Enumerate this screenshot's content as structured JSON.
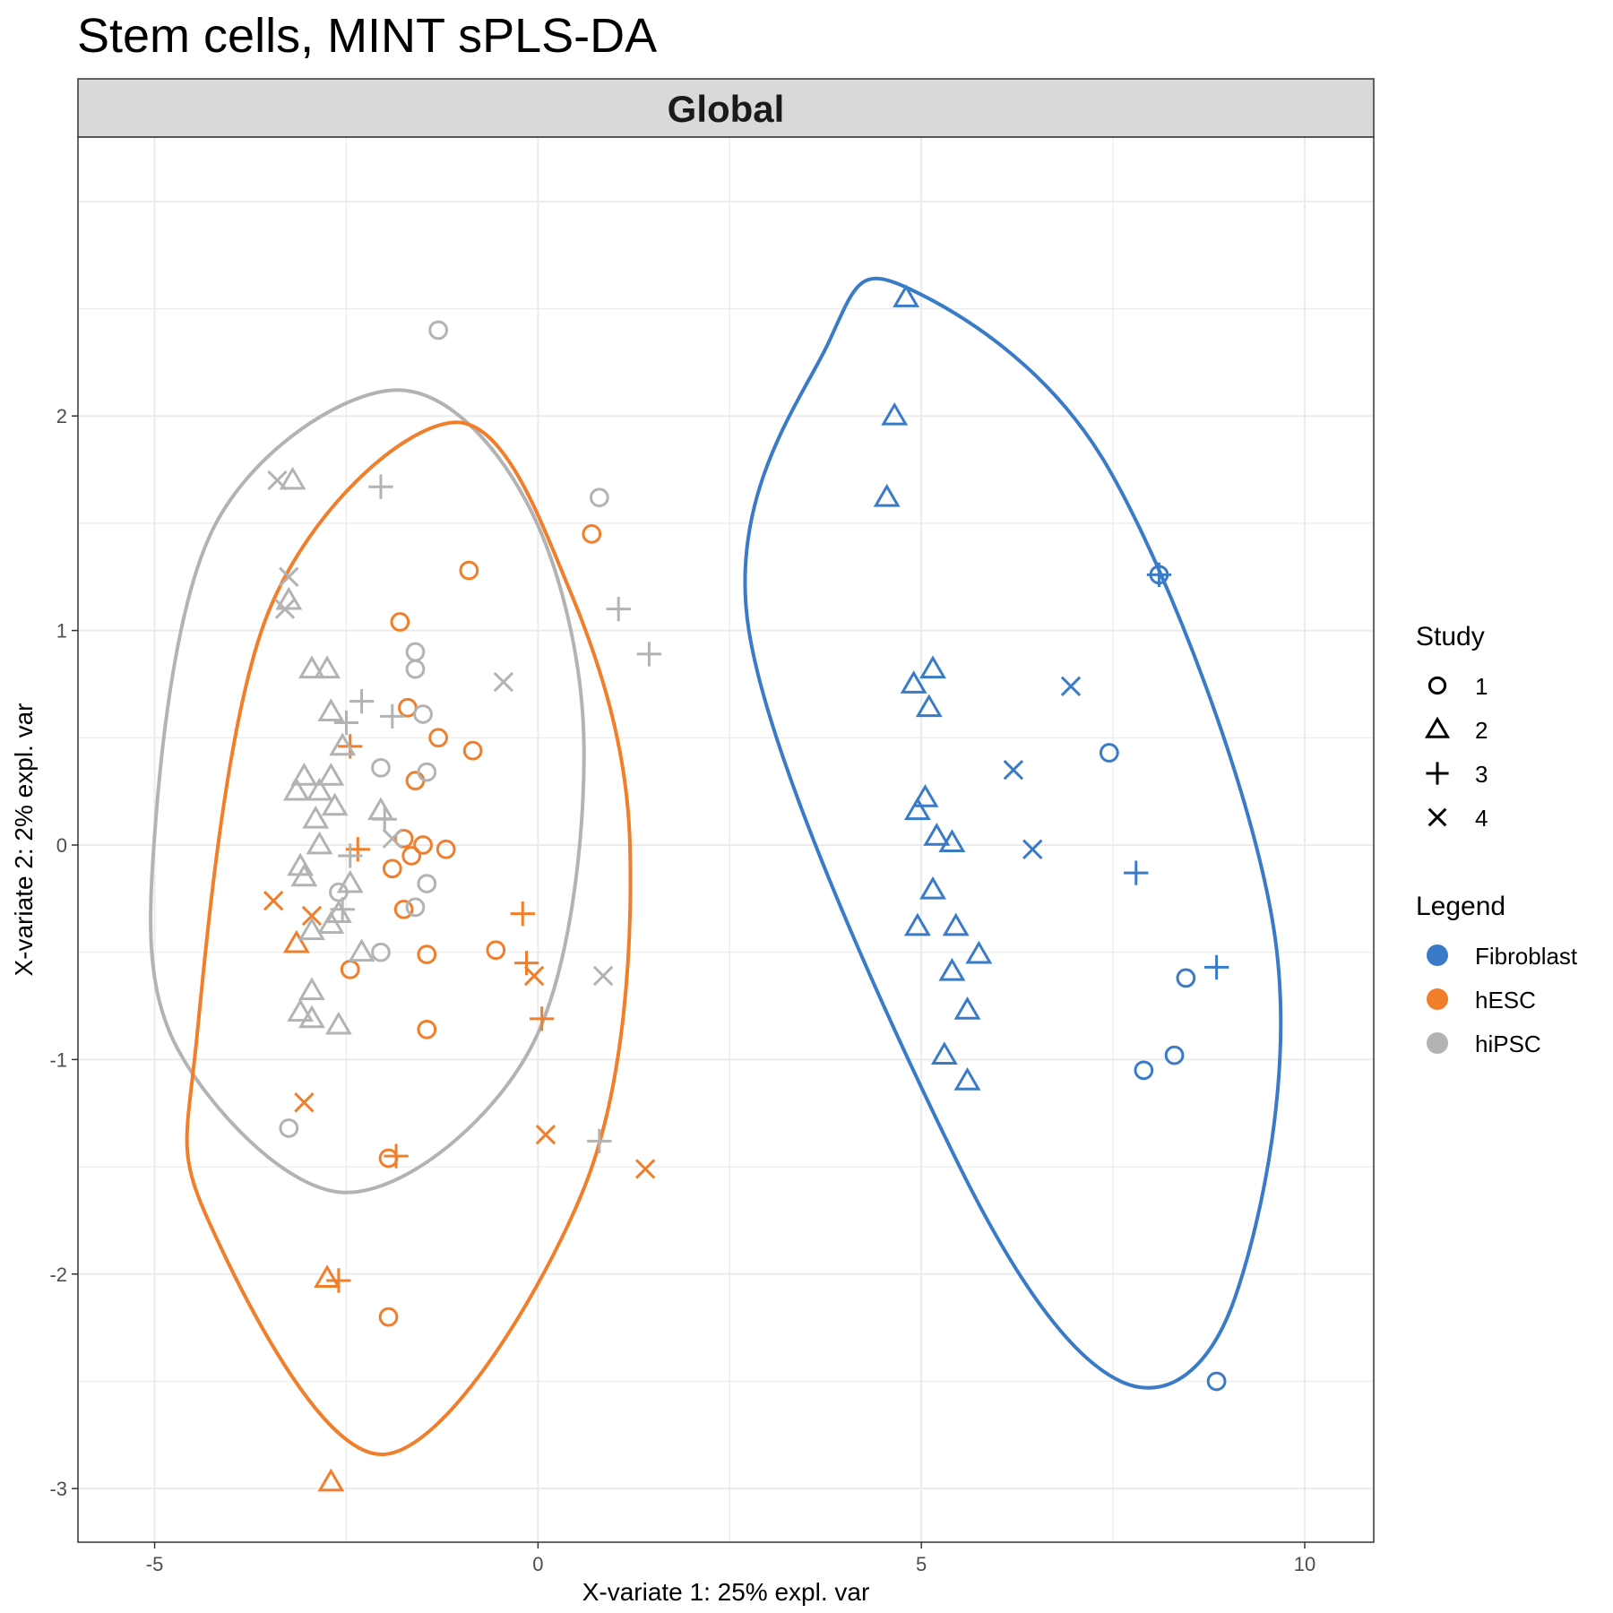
{
  "chart_data": {
    "type": "scatter",
    "title": "Stem cells, MINT sPLS-DA",
    "facet_label": "Global",
    "xlabel": "X-variate 1: 25% expl. var",
    "ylabel": "X-variate 2: 2% expl. var",
    "xlim": [
      -6.0,
      10.9
    ],
    "ylim": [
      -3.25,
      3.3
    ],
    "x_ticks": [
      -5,
      0,
      5,
      10
    ],
    "y_ticks": [
      -3,
      -2,
      -1,
      0,
      1,
      2
    ],
    "x_tick_labels": [
      "-5",
      "0",
      "5",
      "10"
    ],
    "y_tick_labels": [
      "-3",
      "-2",
      "-1",
      "0",
      "1",
      "2"
    ],
    "grid": true,
    "legend_position": "right",
    "colors": {
      "Fibroblast": "#3a7bc8",
      "hESC": "#f07e2b",
      "hiPSC": "#b3b3b3"
    },
    "shape_legend": {
      "title": "Study",
      "items": [
        {
          "label": "1",
          "shape": "circle"
        },
        {
          "label": "2",
          "shape": "triangle"
        },
        {
          "label": "3",
          "shape": "plus"
        },
        {
          "label": "4",
          "shape": "cross"
        }
      ]
    },
    "color_legend": {
      "title": "Legend",
      "items": [
        {
          "label": "Fibroblast",
          "color": "#3a7bc8"
        },
        {
          "label": "hESC",
          "color": "#f07e2b"
        },
        {
          "label": "hiPSC",
          "color": "#b3b3b3"
        }
      ]
    },
    "ellipses": [
      {
        "group": "hiPSC",
        "points": [
          [
            -1.9,
            2.12
          ],
          [
            -0.15,
            1.6
          ],
          [
            0.6,
            0.45
          ],
          [
            -0.1,
            -0.95
          ],
          [
            -2.5,
            -1.62
          ],
          [
            -4.7,
            -0.95
          ],
          [
            -5.0,
            0.05
          ],
          [
            -4.2,
            1.5
          ]
        ]
      },
      {
        "group": "hESC",
        "points": [
          [
            -1.1,
            1.97
          ],
          [
            0.4,
            1.2
          ],
          [
            1.2,
            0.0
          ],
          [
            0.6,
            -1.6
          ],
          [
            -2.0,
            -2.84
          ],
          [
            -4.3,
            -1.75
          ],
          [
            -4.45,
            -0.9
          ],
          [
            -3.5,
            1.1
          ]
        ]
      },
      {
        "group": "Fibroblast",
        "points": [
          [
            4.8,
            2.6
          ],
          [
            7.45,
            1.75
          ],
          [
            9.6,
            -0.4
          ],
          [
            9.1,
            -2.1
          ],
          [
            7.6,
            -2.5
          ],
          [
            5.5,
            -1.5
          ],
          [
            2.75,
            1.0
          ],
          [
            3.8,
            2.35
          ]
        ]
      }
    ],
    "series": [
      {
        "name": "Fibroblast",
        "points": [
          {
            "x": 4.8,
            "y": 2.55,
            "study": "2"
          },
          {
            "x": 4.65,
            "y": 2.0,
            "study": "2"
          },
          {
            "x": 4.55,
            "y": 1.62,
            "study": "2"
          },
          {
            "x": 5.15,
            "y": 0.82,
            "study": "2"
          },
          {
            "x": 4.9,
            "y": 0.75,
            "study": "2"
          },
          {
            "x": 5.1,
            "y": 0.64,
            "study": "2"
          },
          {
            "x": 5.05,
            "y": 0.22,
            "study": "2"
          },
          {
            "x": 4.95,
            "y": 0.16,
            "study": "2"
          },
          {
            "x": 5.2,
            "y": 0.04,
            "study": "2"
          },
          {
            "x": 5.4,
            "y": 0.01,
            "study": "2"
          },
          {
            "x": 5.15,
            "y": -0.21,
            "study": "2"
          },
          {
            "x": 4.95,
            "y": -0.38,
            "study": "2"
          },
          {
            "x": 5.45,
            "y": -0.38,
            "study": "2"
          },
          {
            "x": 5.75,
            "y": -0.51,
            "study": "2"
          },
          {
            "x": 5.4,
            "y": -0.59,
            "study": "2"
          },
          {
            "x": 5.6,
            "y": -0.77,
            "study": "2"
          },
          {
            "x": 5.3,
            "y": -0.98,
            "study": "2"
          },
          {
            "x": 5.6,
            "y": -1.1,
            "study": "2"
          },
          {
            "x": 8.1,
            "y": 1.26,
            "study": "1"
          },
          {
            "x": 7.45,
            "y": 0.43,
            "study": "1"
          },
          {
            "x": 8.45,
            "y": -0.62,
            "study": "1"
          },
          {
            "x": 8.3,
            "y": -0.98,
            "study": "1"
          },
          {
            "x": 7.9,
            "y": -1.05,
            "study": "1"
          },
          {
            "x": 8.85,
            "y": -2.5,
            "study": "1"
          },
          {
            "x": 8.1,
            "y": 1.26,
            "study": "3"
          },
          {
            "x": 7.8,
            "y": -0.13,
            "study": "3"
          },
          {
            "x": 8.85,
            "y": -0.57,
            "study": "3"
          },
          {
            "x": 6.95,
            "y": 0.74,
            "study": "4"
          },
          {
            "x": 6.2,
            "y": 0.35,
            "study": "4"
          },
          {
            "x": 6.45,
            "y": -0.02,
            "study": "4"
          }
        ]
      },
      {
        "name": "hESC",
        "points": [
          {
            "x": 0.7,
            "y": 1.45,
            "study": "1"
          },
          {
            "x": -0.9,
            "y": 1.28,
            "study": "1"
          },
          {
            "x": -1.8,
            "y": 1.04,
            "study": "1"
          },
          {
            "x": -1.7,
            "y": 0.64,
            "study": "1"
          },
          {
            "x": -1.3,
            "y": 0.5,
            "study": "1"
          },
          {
            "x": -0.85,
            "y": 0.44,
            "study": "1"
          },
          {
            "x": -1.6,
            "y": 0.3,
            "study": "1"
          },
          {
            "x": -1.75,
            "y": 0.03,
            "study": "1"
          },
          {
            "x": -1.5,
            "y": 0.0,
            "study": "1"
          },
          {
            "x": -1.2,
            "y": -0.02,
            "study": "1"
          },
          {
            "x": -1.65,
            "y": -0.05,
            "study": "1"
          },
          {
            "x": -1.9,
            "y": -0.11,
            "study": "1"
          },
          {
            "x": -1.75,
            "y": -0.3,
            "study": "1"
          },
          {
            "x": -0.55,
            "y": -0.49,
            "study": "1"
          },
          {
            "x": -1.45,
            "y": -0.51,
            "study": "1"
          },
          {
            "x": -2.45,
            "y": -0.58,
            "study": "1"
          },
          {
            "x": -1.45,
            "y": -0.86,
            "study": "1"
          },
          {
            "x": -1.95,
            "y": -1.46,
            "study": "1"
          },
          {
            "x": -1.95,
            "y": -2.2,
            "study": "1"
          },
          {
            "x": -3.15,
            "y": -0.46,
            "study": "2"
          },
          {
            "x": -2.75,
            "y": -2.02,
            "study": "2"
          },
          {
            "x": -2.7,
            "y": -2.97,
            "study": "2"
          },
          {
            "x": -2.45,
            "y": 0.46,
            "study": "3"
          },
          {
            "x": -2.35,
            "y": -0.02,
            "study": "3"
          },
          {
            "x": -0.2,
            "y": -0.32,
            "study": "3"
          },
          {
            "x": -0.15,
            "y": -0.55,
            "study": "3"
          },
          {
            "x": 0.05,
            "y": -0.81,
            "study": "3"
          },
          {
            "x": -1.85,
            "y": -1.45,
            "study": "3"
          },
          {
            "x": -2.6,
            "y": -2.03,
            "study": "3"
          },
          {
            "x": -3.45,
            "y": -0.26,
            "study": "4"
          },
          {
            "x": -2.95,
            "y": -0.33,
            "study": "4"
          },
          {
            "x": -0.05,
            "y": -0.61,
            "study": "4"
          },
          {
            "x": -3.05,
            "y": -1.2,
            "study": "4"
          },
          {
            "x": 0.1,
            "y": -1.35,
            "study": "4"
          },
          {
            "x": 1.4,
            "y": -1.51,
            "study": "4"
          }
        ]
      },
      {
        "name": "hiPSC",
        "points": [
          {
            "x": -1.3,
            "y": 2.4,
            "study": "1"
          },
          {
            "x": 0.8,
            "y": 1.62,
            "study": "1"
          },
          {
            "x": -1.6,
            "y": 0.9,
            "study": "1"
          },
          {
            "x": -1.6,
            "y": 0.82,
            "study": "1"
          },
          {
            "x": -1.5,
            "y": 0.61,
            "study": "1"
          },
          {
            "x": -2.05,
            "y": 0.36,
            "study": "1"
          },
          {
            "x": -1.45,
            "y": 0.34,
            "study": "1"
          },
          {
            "x": -1.45,
            "y": -0.18,
            "study": "1"
          },
          {
            "x": -2.6,
            "y": -0.22,
            "study": "1"
          },
          {
            "x": -1.6,
            "y": -0.29,
            "study": "1"
          },
          {
            "x": -2.05,
            "y": -0.5,
            "study": "1"
          },
          {
            "x": -3.25,
            "y": -1.32,
            "study": "1"
          },
          {
            "x": -3.2,
            "y": 1.7,
            "study": "2"
          },
          {
            "x": -3.25,
            "y": 1.14,
            "study": "2"
          },
          {
            "x": -2.95,
            "y": 0.82,
            "study": "2"
          },
          {
            "x": -2.75,
            "y": 0.82,
            "study": "2"
          },
          {
            "x": -2.7,
            "y": 0.62,
            "study": "2"
          },
          {
            "x": -2.55,
            "y": 0.46,
            "study": "2"
          },
          {
            "x": -3.05,
            "y": 0.32,
            "study": "2"
          },
          {
            "x": -2.7,
            "y": 0.32,
            "study": "2"
          },
          {
            "x": -3.15,
            "y": 0.25,
            "study": "2"
          },
          {
            "x": -2.85,
            "y": 0.25,
            "study": "2"
          },
          {
            "x": -2.65,
            "y": 0.18,
            "study": "2"
          },
          {
            "x": -2.05,
            "y": 0.16,
            "study": "2"
          },
          {
            "x": -2.9,
            "y": 0.12,
            "study": "2"
          },
          {
            "x": -2.85,
            "y": 0.0,
            "study": "2"
          },
          {
            "x": -3.1,
            "y": -0.1,
            "study": "2"
          },
          {
            "x": -3.05,
            "y": -0.15,
            "study": "2"
          },
          {
            "x": -2.45,
            "y": -0.18,
            "study": "2"
          },
          {
            "x": -2.6,
            "y": -0.32,
            "study": "2"
          },
          {
            "x": -2.7,
            "y": -0.37,
            "study": "2"
          },
          {
            "x": -2.95,
            "y": -0.4,
            "study": "2"
          },
          {
            "x": -2.3,
            "y": -0.5,
            "study": "2"
          },
          {
            "x": -2.95,
            "y": -0.68,
            "study": "2"
          },
          {
            "x": -3.1,
            "y": -0.78,
            "study": "2"
          },
          {
            "x": -2.95,
            "y": -0.81,
            "study": "2"
          },
          {
            "x": -2.6,
            "y": -0.84,
            "study": "2"
          },
          {
            "x": -2.05,
            "y": 1.67,
            "study": "3"
          },
          {
            "x": 1.05,
            "y": 1.1,
            "study": "3"
          },
          {
            "x": 1.45,
            "y": 0.89,
            "study": "3"
          },
          {
            "x": -2.3,
            "y": 0.67,
            "study": "3"
          },
          {
            "x": -1.9,
            "y": 0.6,
            "study": "3"
          },
          {
            "x": -2.5,
            "y": 0.57,
            "study": "3"
          },
          {
            "x": -2.0,
            "y": 0.12,
            "study": "3"
          },
          {
            "x": -2.45,
            "y": -0.05,
            "study": "3"
          },
          {
            "x": -2.55,
            "y": -0.3,
            "study": "3"
          },
          {
            "x": 0.8,
            "y": -1.38,
            "study": "3"
          },
          {
            "x": -3.4,
            "y": 1.7,
            "study": "4"
          },
          {
            "x": -3.25,
            "y": 1.25,
            "study": "4"
          },
          {
            "x": -3.3,
            "y": 1.1,
            "study": "4"
          },
          {
            "x": -0.45,
            "y": 0.76,
            "study": "4"
          },
          {
            "x": -1.9,
            "y": 0.03,
            "study": "4"
          },
          {
            "x": 0.85,
            "y": -0.61,
            "study": "4"
          }
        ]
      }
    ]
  }
}
